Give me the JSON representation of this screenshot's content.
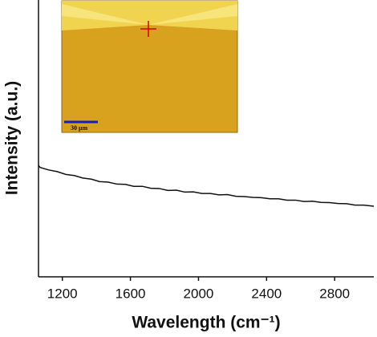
{
  "chart_data": {
    "type": "line",
    "x_label": "Wavelength (cm⁻¹)",
    "y_label": "Intensity (a.u.)",
    "inset_scale_label": "30 μm",
    "xlim": [
      1060,
      3030
    ],
    "xticks": [
      1200,
      1600,
      2000,
      2400,
      2800
    ],
    "ylim": [
      0,
      1
    ],
    "series": [
      {
        "color": "#111111",
        "x": [
          1060,
          1070,
          1120,
          1170,
          1220,
          1270,
          1320,
          1370,
          1420,
          1470,
          1520,
          1570,
          1620,
          1670,
          1720,
          1770,
          1820,
          1870,
          1920,
          1970,
          2020,
          2070,
          2120,
          2170,
          2220,
          2270,
          2320,
          2370,
          2420,
          2470,
          2520,
          2570,
          2620,
          2670,
          2720,
          2770,
          2820,
          2870,
          2920,
          2970,
          3030
        ],
        "values": [
          0.402,
          0.395,
          0.386,
          0.38,
          0.37,
          0.366,
          0.357,
          0.353,
          0.344,
          0.342,
          0.335,
          0.334,
          0.327,
          0.327,
          0.32,
          0.319,
          0.312,
          0.313,
          0.306,
          0.307,
          0.301,
          0.301,
          0.296,
          0.297,
          0.291,
          0.29,
          0.287,
          0.286,
          0.282,
          0.282,
          0.277,
          0.277,
          0.272,
          0.273,
          0.269,
          0.268,
          0.265,
          0.264,
          0.259,
          0.259,
          0.255
        ]
      }
    ]
  }
}
